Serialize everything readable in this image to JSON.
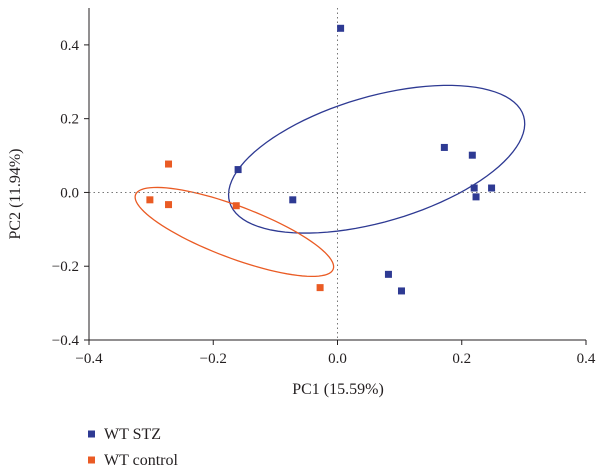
{
  "chart_data": {
    "type": "scatter",
    "title": "",
    "xlabel": "PC1 (15.59%)",
    "ylabel": "PC2 (11.94%)",
    "xlim": [
      -0.4,
      0.4
    ],
    "ylim": [
      -0.4,
      0.5
    ],
    "xticks": [
      -0.4,
      -0.2,
      0.0,
      0.2,
      0.4
    ],
    "yticks": [
      -0.4,
      -0.2,
      0.0,
      0.2,
      0.4
    ],
    "xtick_labels": [
      "−0.4",
      "−0.2",
      "0.0",
      "0.2",
      "0.4"
    ],
    "ytick_labels": [
      "−0.4",
      "−0.2",
      "0.0",
      "0.2",
      "0.4"
    ],
    "grid": false,
    "zero_lines": "dotted",
    "legend_position": "bottom-left",
    "series": [
      {
        "name": "WT STZ",
        "color": "#2e3a93",
        "marker": "square",
        "points": [
          {
            "x": 0.005,
            "y": 0.445
          },
          {
            "x": 0.172,
            "y": 0.122
          },
          {
            "x": 0.217,
            "y": 0.101
          },
          {
            "x": 0.22,
            "y": 0.012
          },
          {
            "x": 0.223,
            "y": -0.012
          },
          {
            "x": 0.248,
            "y": 0.012
          },
          {
            "x": -0.16,
            "y": 0.062
          },
          {
            "x": -0.072,
            "y": -0.02
          },
          {
            "x": 0.082,
            "y": -0.222
          },
          {
            "x": 0.103,
            "y": -0.267
          }
        ],
        "ellipse": {
          "cx": 0.063,
          "cy": 0.09,
          "rx": 0.27,
          "ry": 0.155,
          "angle_deg": 35
        }
      },
      {
        "name": "WT control",
        "color": "#ea5b24",
        "marker": "square",
        "points": [
          {
            "x": -0.302,
            "y": -0.02
          },
          {
            "x": -0.272,
            "y": 0.077
          },
          {
            "x": -0.272,
            "y": -0.033
          },
          {
            "x": -0.163,
            "y": -0.036
          },
          {
            "x": -0.028,
            "y": -0.258
          }
        ],
        "ellipse": {
          "cx": -0.166,
          "cy": -0.107,
          "rx": 0.19,
          "ry": 0.063,
          "angle_deg": -35
        }
      }
    ]
  }
}
